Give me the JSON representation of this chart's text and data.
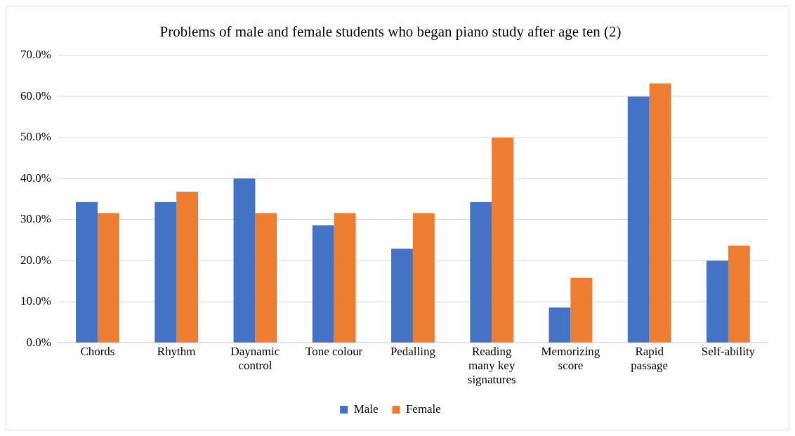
{
  "chart_data": {
    "type": "bar",
    "title": "Problems of male and female students who began piano study after age ten (2)",
    "categories": [
      "Chords",
      "Rhythm",
      "Daynamic control",
      "Tone colour",
      "Pedalling",
      "Reading many key signatures",
      "Memorizing score",
      "Rapid passage",
      "Self-ability"
    ],
    "series": [
      {
        "name": "Male",
        "color": "#4472c4",
        "values": [
          34.3,
          34.3,
          40.0,
          28.6,
          22.9,
          34.3,
          8.6,
          60.0,
          20.0
        ]
      },
      {
        "name": "Female",
        "color": "#ed7d31",
        "values": [
          31.6,
          36.8,
          31.6,
          31.6,
          31.6,
          50.0,
          15.8,
          63.2,
          23.7
        ]
      }
    ],
    "ylim": [
      0,
      70
    ],
    "yticks": [
      {
        "value": 0,
        "label": "0.0%"
      },
      {
        "value": 10,
        "label": "10.0%"
      },
      {
        "value": 20,
        "label": "20.0%"
      },
      {
        "value": 30,
        "label": "30.0%"
      },
      {
        "value": 40,
        "label": "40.0%"
      },
      {
        "value": 50,
        "label": "50.0%"
      },
      {
        "value": 60,
        "label": "60.0%"
      },
      {
        "value": 70,
        "label": "70.0%"
      }
    ],
    "grid": "y",
    "legend": "bottom"
  }
}
